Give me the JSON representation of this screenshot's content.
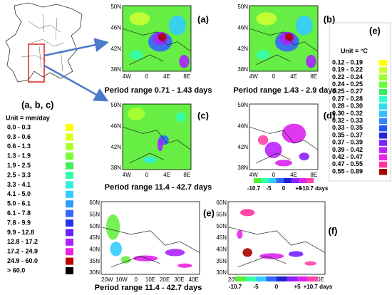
{
  "panels": [
    {
      "label": "(a)"
    },
    {
      "label": "(b)"
    },
    {
      "label": "(c)"
    },
    {
      "label": "(d)"
    },
    {
      "label": "(e)"
    },
    {
      "label": "(f)"
    }
  ],
  "period_titles": [
    "Period range 0.71 - 1.43 days",
    "Period range 1.43 - 2.9 days",
    "Period range 11.4 - 42.7 days",
    "Period range 11.4 - 42.7 days"
  ],
  "small_map_ticks": {
    "lat": [
      "50N",
      "46N",
      "42N",
      "38N"
    ],
    "lon": [
      "4W",
      "0",
      "4E",
      "8E"
    ]
  },
  "large_map_ticks": {
    "lat": [
      "60N",
      "55N",
      "50N",
      "45N",
      "40N",
      "35N",
      "30N"
    ],
    "lon": [
      "20W",
      "10W",
      "0",
      "10E",
      "20E",
      "30E",
      "40E"
    ]
  },
  "precip_legend": {
    "title": "(a, b, c)",
    "unit": "Unit = mm/day",
    "entries": [
      {
        "label": "0.0  -  0.3",
        "color": "#ffff00"
      },
      {
        "label": "0.3  -  0.6",
        "color": "#ddff22"
      },
      {
        "label": "0.6  -  1.3",
        "color": "#aaff33"
      },
      {
        "label": "1.3  -  1.9",
        "color": "#77ff33"
      },
      {
        "label": "1.9  -  2.5",
        "color": "#44ee55"
      },
      {
        "label": "2.5  -  3.3",
        "color": "#33ffaa"
      },
      {
        "label": "3.3  -  4.1",
        "color": "#33eedd"
      },
      {
        "label": "4.1  -  5.0",
        "color": "#33ccff"
      },
      {
        "label": "5.0  -  6.1",
        "color": "#3399ff"
      },
      {
        "label": "6.1  -  7.8",
        "color": "#3366ff"
      },
      {
        "label": "7.8  -  9.9",
        "color": "#2233ee"
      },
      {
        "label": "9.9  -  12.8",
        "color": "#6622ff"
      },
      {
        "label": "12.8  -  17.2",
        "color": "#aa22ff"
      },
      {
        "label": "17.2  -  24.9",
        "color": "#ee22dd"
      },
      {
        "label": "24.9  -  60.0",
        "color": "#bb0000"
      },
      {
        "label": "> 60.0",
        "color": "#000000"
      }
    ]
  },
  "temp_legend": {
    "title": "(e)",
    "unit": "Unit = °C",
    "entries": [
      {
        "label": "0.12  -  0.19",
        "color": "#ffff00"
      },
      {
        "label": "0.19  -  0.22",
        "color": "#ccff33"
      },
      {
        "label": "0.22  -  0.24",
        "color": "#99ff33"
      },
      {
        "label": "0.24  -  0.25",
        "color": "#66ff33"
      },
      {
        "label": "0.25  -  0.27",
        "color": "#33ee66"
      },
      {
        "label": "0.27  -  0.28",
        "color": "#33ffcc"
      },
      {
        "label": "0.28  -  0.30",
        "color": "#33ddee"
      },
      {
        "label": "0.30  -  0.32",
        "color": "#33bbff"
      },
      {
        "label": "0.32  -  0.33",
        "color": "#3388ff"
      },
      {
        "label": "0.33  -  0.35",
        "color": "#2255ff"
      },
      {
        "label": "0.35  -  0.37",
        "color": "#2222dd"
      },
      {
        "label": "0.37  -  0.39",
        "color": "#7722ff"
      },
      {
        "label": "0.39  -  0.42",
        "color": "#bb22ff"
      },
      {
        "label": "0.42  -  0.47",
        "color": "#ee22ee"
      },
      {
        "label": "0.47  -  0.55",
        "color": "#ff3399"
      },
      {
        "label": "0.55  -  0.89",
        "color": "#aa0000"
      }
    ]
  },
  "period_colorbar": {
    "labels": [
      "-10.7",
      "-5",
      "0",
      "+5",
      "+10.7 days"
    ],
    "colors": [
      "#55ee33",
      "#33ffaa",
      "#33ccff",
      "#3366ff",
      "#2222cc",
      "#8822ff",
      "#dd22ee",
      "#ff44aa"
    ]
  }
}
